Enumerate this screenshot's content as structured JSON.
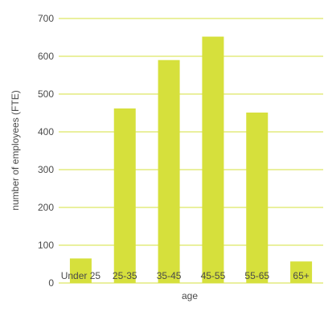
{
  "chart_data": {
    "type": "bar",
    "categories": [
      "Under 25",
      "25-35",
      "35-45",
      "45-55",
      "55-65",
      "65+"
    ],
    "values": [
      65,
      462,
      590,
      652,
      451,
      57
    ],
    "title": "",
    "xlabel": "age",
    "ylabel": "number of employees (FTE)",
    "ylim": [
      0,
      700
    ],
    "yticks": [
      0,
      100,
      200,
      300,
      400,
      500,
      600,
      700
    ],
    "grid": true,
    "legend": "none",
    "colors": {
      "bar": "#d6e03c",
      "grid": "#d6e03c",
      "text": "#4a4a4a"
    }
  }
}
